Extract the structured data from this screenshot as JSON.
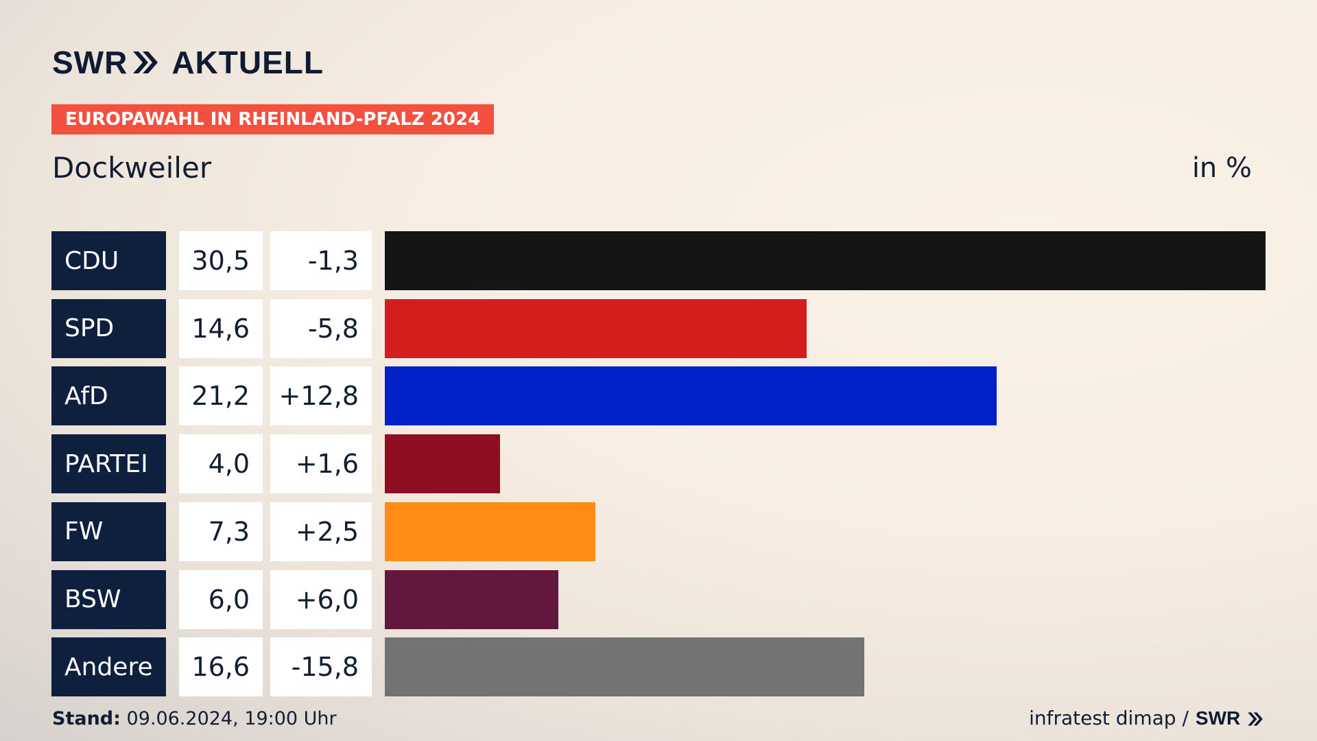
{
  "header": {
    "logo_left": "SWR",
    "logo_right": "AKTUELL",
    "badge": "EUROPAWAHL IN RHEINLAND-PFALZ 2024",
    "region": "Dockweiler",
    "unit": "in %"
  },
  "chart_data": {
    "type": "bar",
    "orientation": "horizontal",
    "categories": [
      "CDU",
      "SPD",
      "AfD",
      "PARTEI",
      "FW",
      "BSW",
      "Andere"
    ],
    "values": [
      30.5,
      14.6,
      21.2,
      4.0,
      7.3,
      6.0,
      16.6
    ],
    "value_labels": [
      "30,5",
      "14,6",
      "21,2",
      "4,0",
      "7,3",
      "6,0",
      "16,6"
    ],
    "changes": [
      -1.3,
      -5.8,
      12.8,
      1.6,
      2.5,
      6.0,
      -15.8
    ],
    "change_labels": [
      "-1,3",
      "-5,8",
      "+12,8",
      "+1,6",
      "+2,5",
      "+6,0",
      "-15,8"
    ],
    "colors": [
      "#151515",
      "#d41e1e",
      "#0020c8",
      "#8e0f22",
      "#ff8c14",
      "#63173f",
      "#737373"
    ],
    "xlim": [
      0,
      30.5
    ],
    "grid": false
  },
  "footer": {
    "stand_label": "Stand:",
    "stand_value": "09.06.2024, 19:00 Uhr",
    "source": "infratest dimap /",
    "source_logo": "SWR"
  }
}
